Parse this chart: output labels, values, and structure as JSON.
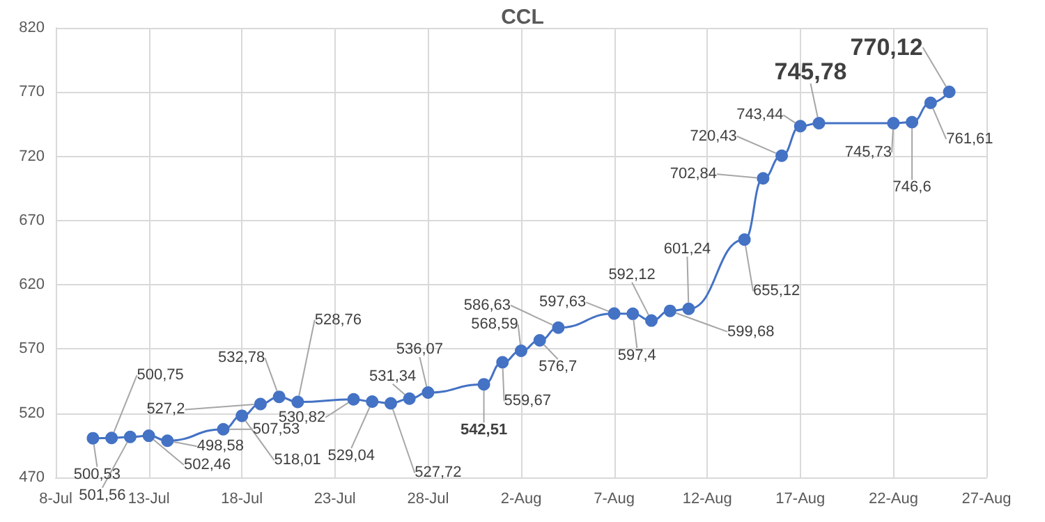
{
  "chart_data": {
    "type": "line",
    "title": "CCL",
    "x": [
      "--07-10",
      "--07-11",
      "--07-12",
      "--07-13",
      "--07-14",
      "--07-17",
      "--07-18",
      "--07-19",
      "--07-20",
      "--07-21",
      "--07-24",
      "--07-25",
      "--07-26",
      "--07-27",
      "--07-28",
      "--07-31",
      "--08-01",
      "--08-02",
      "--08-03",
      "--08-04",
      "--08-07",
      "--08-08",
      "--08-09",
      "--08-10",
      "--08-11",
      "--08-14",
      "--08-15",
      "--08-16",
      "--08-17",
      "--08-18",
      "--08-22",
      "--08-23",
      "--08-24",
      "--08-25"
    ],
    "series": [
      {
        "color": "#4472c4",
        "values": [
          500.53,
          500.75,
          501.56,
          502.46,
          498.58,
          507.53,
          518.01,
          527.2,
          532.78,
          528.76,
          530.82,
          529.04,
          527.72,
          531.34,
          536.07,
          542.51,
          559.67,
          568.59,
          576.7,
          586.63,
          597.63,
          597.4,
          592.12,
          599.68,
          601.24,
          655.12,
          702.84,
          720.43,
          743.44,
          745.78,
          745.73,
          746.6,
          761.61,
          770.12
        ],
        "value_labels": [
          "500,53",
          "500,75",
          "501,56",
          "502,46",
          "498,58",
          "507,53",
          "518,01",
          "527,2",
          "532,78",
          "528,76",
          "530,82",
          "529,04",
          "527,72",
          "531,34",
          "536,07",
          "542,51",
          "559,67",
          "568,59",
          "576,7",
          "586,63",
          "597,63",
          "597,4",
          "592,12",
          "599,68",
          "601,24",
          "655,12",
          "702,84",
          "720,43",
          "743,44",
          "745,78",
          "745,73",
          "746,6",
          "761,61",
          "770,12"
        ]
      }
    ],
    "xlim": [
      "--07-08",
      "--08-27"
    ],
    "xticks": [
      {
        "value": "--07-08",
        "label": "8-Jul"
      },
      {
        "value": "--07-13",
        "label": "13-Jul"
      },
      {
        "value": "--07-18",
        "label": "18-Jul"
      },
      {
        "value": "--07-23",
        "label": "23-Jul"
      },
      {
        "value": "--07-28",
        "label": "28-Jul"
      },
      {
        "value": "--08-02",
        "label": "2-Aug"
      },
      {
        "value": "--08-07",
        "label": "7-Aug"
      },
      {
        "value": "--08-12",
        "label": "12-Aug"
      },
      {
        "value": "--08-17",
        "label": "17-Aug"
      },
      {
        "value": "--08-22",
        "label": "22-Aug"
      },
      {
        "value": "--08-27",
        "label": "27-Aug"
      }
    ],
    "ylim": [
      470,
      820
    ],
    "yticks": [
      470,
      520,
      570,
      620,
      670,
      720,
      770,
      820
    ],
    "grid": true,
    "marker": "circle",
    "line_style": "solid"
  }
}
